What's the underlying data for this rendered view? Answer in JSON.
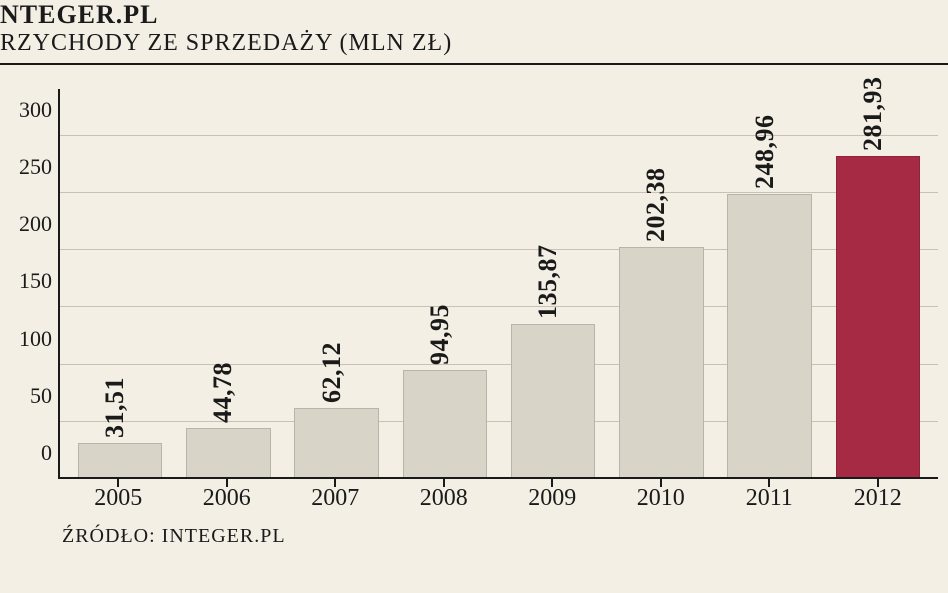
{
  "header": {
    "title": "NTEGER.PL",
    "subtitle": "RZYCHODY ZE SPRZEDAŻY (MLN ZŁ)"
  },
  "chart": {
    "type": "bar",
    "background_color": "#f3efe4",
    "grid_color": "#c8c2b4",
    "axis_color": "#1a1a1a",
    "text_color": "#1a1a1a",
    "ylim": [
      0,
      300
    ],
    "ytick_step": 50,
    "yticks": [
      0,
      50,
      100,
      150,
      200,
      250,
      300
    ],
    "plot_top_padding_ratio": 0.12,
    "bar_width_ratio": 0.78,
    "default_bar_color": "#d8d4c7",
    "highlight_bar_color": "#a72a44",
    "value_fontsize": 26,
    "axis_label_fontsize": 22,
    "xaxis_label_fontsize": 24,
    "categories": [
      "2005",
      "2006",
      "2007",
      "2008",
      "2009",
      "2010",
      "2011",
      "2012"
    ],
    "value_labels": [
      "31,51",
      "44,78",
      "62,12",
      "94,95",
      "135,87",
      "202,38",
      "248,96",
      "281,93"
    ],
    "values": [
      31.51,
      44.78,
      62.12,
      94.95,
      135.87,
      202.38,
      248.96,
      281.93
    ],
    "bar_colors": [
      "#d8d4c7",
      "#d8d4c7",
      "#d8d4c7",
      "#d8d4c7",
      "#d8d4c7",
      "#d8d4c7",
      "#d8d4c7",
      "#a72a44"
    ]
  },
  "source": {
    "label": "Źródło: Integer.pl"
  }
}
